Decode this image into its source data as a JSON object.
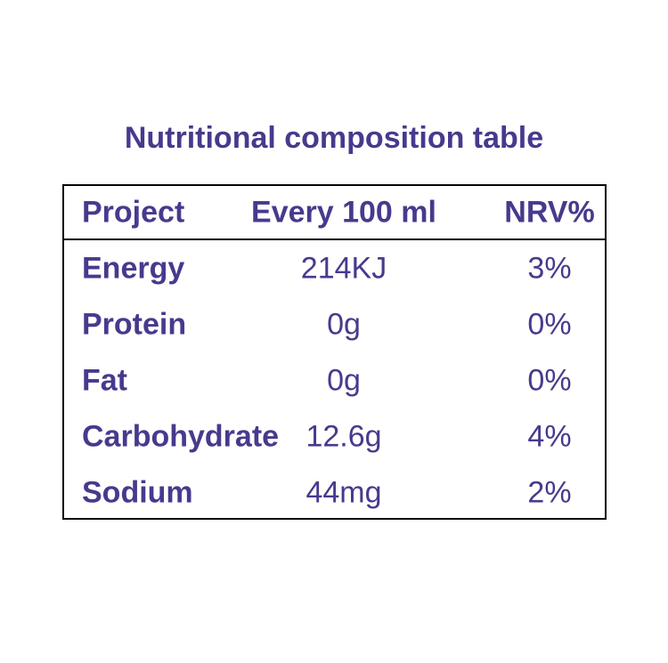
{
  "title": "Nutritional composition table",
  "colors": {
    "text_purple": "#473a8d",
    "border_black": "#000000",
    "background": "#ffffff"
  },
  "table": {
    "headers": {
      "project": "Project",
      "per_serving": "Every 100 ml",
      "nrv": "NRV%"
    },
    "rows": [
      {
        "name": "Energy",
        "amount": "214KJ",
        "nrv": "3%"
      },
      {
        "name": "Protein",
        "amount": "0g",
        "nrv": "0%"
      },
      {
        "name": "Fat",
        "amount": "0g",
        "nrv": "0%"
      },
      {
        "name": "Carbohydrate",
        "amount": "12.6g",
        "nrv": "4%"
      },
      {
        "name": "Sodium",
        "amount": "44mg",
        "nrv": "2%"
      }
    ]
  }
}
